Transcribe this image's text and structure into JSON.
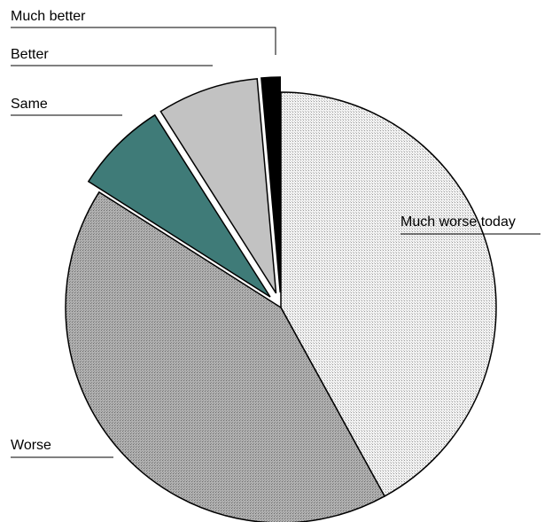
{
  "chart_data": {
    "type": "pie",
    "title": "",
    "slices": [
      {
        "label": "Much worse today",
        "value": 42.0,
        "color": "#ececec",
        "exploded": false
      },
      {
        "label": "Worse",
        "value": 42.0,
        "color": "#a9a9a9",
        "exploded": false
      },
      {
        "label": "Same",
        "value": 7.0,
        "color": "#3f7b78",
        "exploded": true
      },
      {
        "label": "Better",
        "value": 7.6,
        "color": "#c2c2c2",
        "exploded": true
      },
      {
        "label": "Much better",
        "value": 1.4,
        "color": "#000000",
        "exploded": true
      }
    ],
    "legend": "none",
    "labels_placement": "outside-with-leader-lines"
  }
}
